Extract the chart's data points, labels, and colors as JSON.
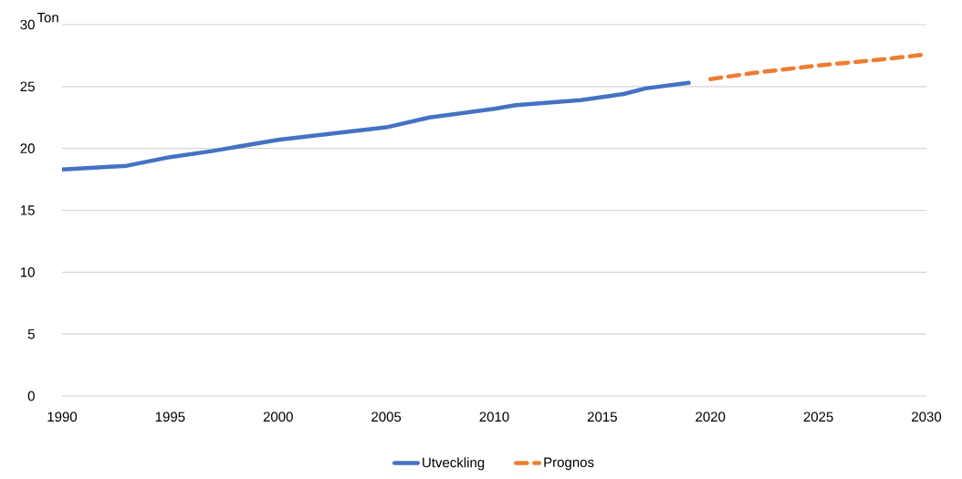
{
  "chart_data": {
    "type": "line",
    "ylabel": "Ton",
    "series": [
      {
        "name": "Utveckling",
        "color": "#4472c4",
        "line_style": "solid",
        "x": [
          1990,
          1993,
          1995,
          1997,
          2000,
          2005,
          2007,
          2010,
          2011,
          2014,
          2016,
          2017,
          2019
        ],
        "values": [
          18.3,
          18.6,
          19.3,
          19.8,
          20.7,
          21.7,
          22.5,
          23.2,
          23.5,
          23.9,
          24.4,
          24.85,
          25.3
        ]
      },
      {
        "name": "Prognos",
        "color": "#ed7d31",
        "line_style": "dashed",
        "x": [
          2020,
          2022,
          2025,
          2028,
          2030
        ],
        "values": [
          25.6,
          26.1,
          26.7,
          27.2,
          27.6
        ]
      }
    ],
    "xlim": [
      1990,
      2030
    ],
    "xticks": [
      1990,
      1995,
      2000,
      2005,
      2010,
      2015,
      2020,
      2025,
      2030
    ],
    "ylim": [
      0,
      30
    ],
    "yticks": [
      0,
      5,
      10,
      15,
      20,
      25,
      30
    ],
    "grid": "y",
    "legend": "bottom"
  }
}
